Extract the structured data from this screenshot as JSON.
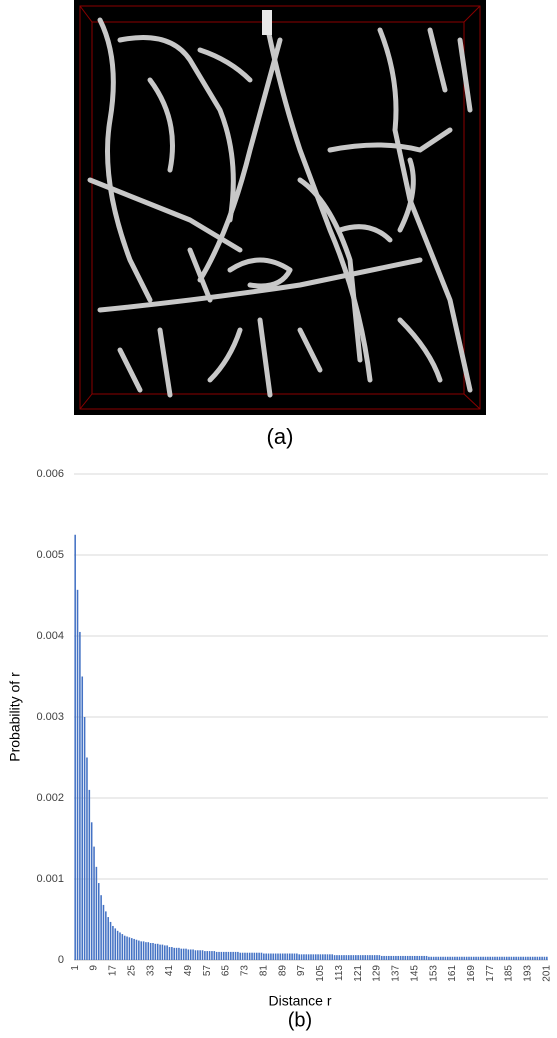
{
  "panel_a": {
    "caption": "(a)"
  },
  "chart_data": {
    "type": "bar",
    "caption": "(b)",
    "x_label": "Distance r",
    "y_label": "Probability of r",
    "color": "#4472c4",
    "grid": true,
    "ylim": [
      0,
      0.006
    ],
    "yticks": [
      0,
      0.001,
      0.002,
      0.003,
      0.004,
      0.005,
      0.006
    ],
    "categories": [
      1,
      null,
      null,
      null,
      null,
      null,
      null,
      null,
      9,
      null,
      null,
      null,
      null,
      null,
      null,
      null,
      17,
      null,
      null,
      null,
      null,
      null,
      null,
      null,
      25,
      null,
      null,
      null,
      null,
      null,
      null,
      null,
      33,
      null,
      null,
      null,
      null,
      null,
      null,
      null,
      41,
      null,
      null,
      null,
      null,
      null,
      null,
      null,
      49,
      null,
      null,
      null,
      null,
      null,
      null,
      null,
      57,
      null,
      null,
      null,
      null,
      null,
      null,
      null,
      65,
      null,
      null,
      null,
      null,
      null,
      null,
      null,
      73,
      null,
      null,
      null,
      null,
      null,
      null,
      null,
      81,
      null,
      null,
      null,
      null,
      null,
      null,
      null,
      89,
      null,
      null,
      null,
      null,
      null,
      null,
      null,
      97,
      null,
      null,
      null,
      null,
      null,
      null,
      null,
      105,
      null,
      null,
      null,
      null,
      null,
      null,
      null,
      113,
      null,
      null,
      null,
      null,
      null,
      null,
      null,
      121,
      null,
      null,
      null,
      null,
      null,
      null,
      null,
      129,
      null,
      null,
      null,
      null,
      null,
      null,
      null,
      137,
      null,
      null,
      null,
      null,
      null,
      null,
      null,
      145,
      null,
      null,
      null,
      null,
      null,
      null,
      null,
      153,
      null,
      null,
      null,
      null,
      null,
      null,
      null,
      161,
      null,
      null,
      null,
      null,
      null,
      null,
      null,
      169,
      null,
      null,
      null,
      null,
      null,
      null,
      null,
      177,
      null,
      null,
      null,
      null,
      null,
      null,
      null,
      185,
      null,
      null,
      null,
      null,
      null,
      null,
      null,
      193,
      null,
      null,
      null,
      null,
      null,
      null,
      null,
      201
    ],
    "values": [
      0.00525,
      0.00457,
      0.00405,
      0.0035,
      0.003,
      0.0025,
      0.0021,
      0.0017,
      0.0014,
      0.00115,
      0.00095,
      0.0008,
      0.00068,
      0.0006,
      0.00053,
      0.00047,
      0.00042,
      0.00039,
      0.00036,
      0.00034,
      0.00032,
      0.0003,
      0.00029,
      0.00028,
      0.00027,
      0.00026,
      0.00025,
      0.00024,
      0.00023,
      0.00023,
      0.00022,
      0.00022,
      0.00021,
      0.00021,
      0.0002,
      0.0002,
      0.00019,
      0.00019,
      0.00018,
      0.00018,
      0.00016,
      0.00016,
      0.00015,
      0.00015,
      0.00015,
      0.00014,
      0.00014,
      0.00014,
      0.00013,
      0.00013,
      0.00013,
      0.00012,
      0.00012,
      0.00012,
      0.00012,
      0.00011,
      0.00011,
      0.00011,
      0.00011,
      0.00011,
      0.0001,
      0.0001,
      0.0001,
      0.0001,
      0.0001,
      0.0001,
      0.0001,
      0.0001,
      0.0001,
      0.0001,
      9e-05,
      9e-05,
      9e-05,
      9e-05,
      9e-05,
      9e-05,
      9e-05,
      9e-05,
      9e-05,
      9e-05,
      8e-05,
      8e-05,
      8e-05,
      8e-05,
      8e-05,
      8e-05,
      8e-05,
      8e-05,
      8e-05,
      8e-05,
      8e-05,
      8e-05,
      8e-05,
      8e-05,
      8e-05,
      7e-05,
      7e-05,
      7e-05,
      7e-05,
      7e-05,
      7e-05,
      7e-05,
      7e-05,
      7e-05,
      7e-05,
      7e-05,
      7e-05,
      7e-05,
      7e-05,
      7e-05,
      6e-05,
      6e-05,
      6e-05,
      6e-05,
      6e-05,
      6e-05,
      6e-05,
      6e-05,
      6e-05,
      6e-05,
      6e-05,
      6e-05,
      6e-05,
      6e-05,
      6e-05,
      6e-05,
      6e-05,
      6e-05,
      6e-05,
      6e-05,
      5e-05,
      5e-05,
      5e-05,
      5e-05,
      5e-05,
      5e-05,
      5e-05,
      5e-05,
      5e-05,
      5e-05,
      5e-05,
      5e-05,
      5e-05,
      5e-05,
      5e-05,
      5e-05,
      5e-05,
      5e-05,
      5e-05,
      5e-05,
      4e-05,
      4e-05,
      4e-05,
      4e-05,
      4e-05,
      4e-05,
      4e-05,
      4e-05,
      4e-05,
      4e-05,
      4e-05,
      4e-05,
      4e-05,
      4e-05,
      4e-05,
      4e-05,
      4e-05,
      4e-05,
      4e-05,
      4e-05,
      4e-05,
      4e-05,
      4e-05,
      4e-05,
      4e-05,
      4e-05,
      4e-05,
      4e-05,
      4e-05,
      4e-05,
      4e-05,
      4e-05,
      4e-05,
      4e-05,
      4e-05,
      4e-05,
      4e-05,
      4e-05,
      4e-05,
      4e-05,
      4e-05,
      4e-05,
      4e-05,
      4e-05,
      4e-05,
      4e-05,
      4e-05,
      4e-05,
      4e-05,
      4e-05,
      4e-05
    ]
  }
}
